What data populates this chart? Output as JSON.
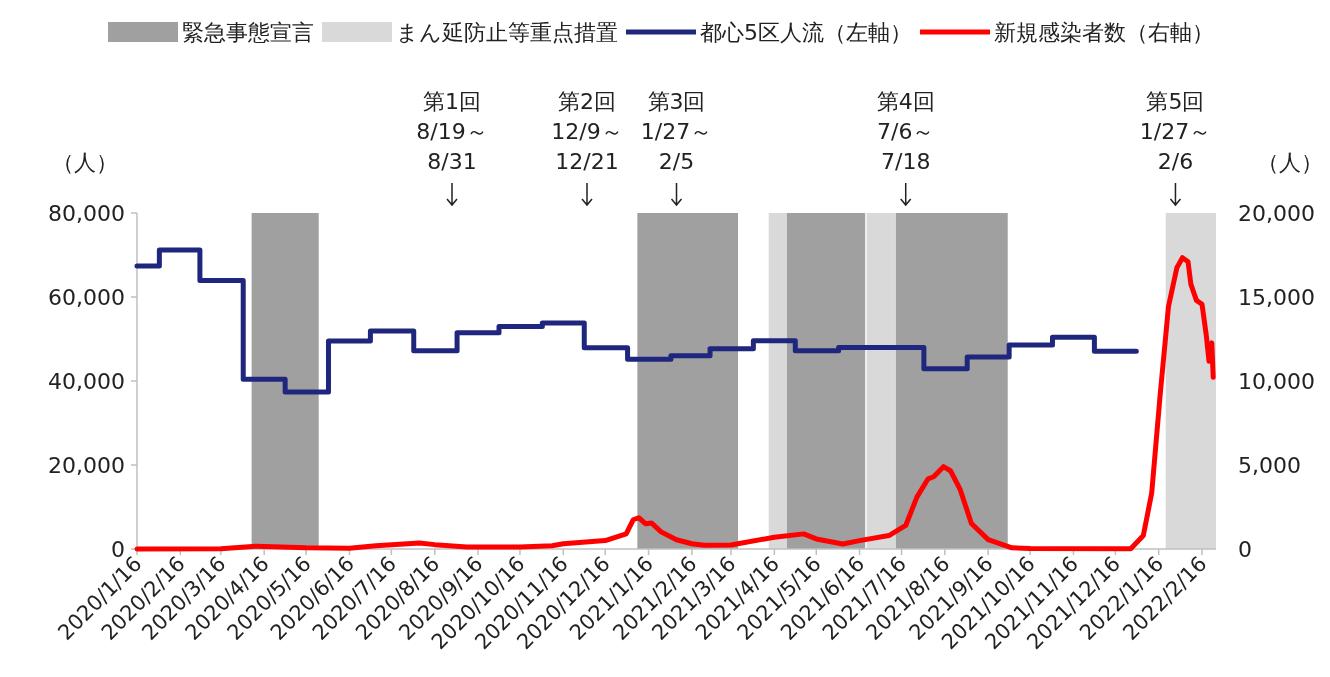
{
  "chart_data": {
    "type": "line",
    "ylabel": "（人）",
    "y2label": "（人）",
    "xlim": [
      "2020-01-16",
      "2022-02-26"
    ],
    "xticks": [
      {
        "value": "2020-01-16",
        "label": "2020/1/16"
      },
      {
        "value": "2020-02-16",
        "label": "2020/2/16"
      },
      {
        "value": "2020-03-16",
        "label": "2020/3/16"
      },
      {
        "value": "2020-04-16",
        "label": "2020/4/16"
      },
      {
        "value": "2020-05-16",
        "label": "2020/5/16"
      },
      {
        "value": "2020-06-16",
        "label": "2020/6/16"
      },
      {
        "value": "2020-07-16",
        "label": "2020/7/16"
      },
      {
        "value": "2020-08-16",
        "label": "2020/8/16"
      },
      {
        "value": "2020-09-16",
        "label": "2020/9/16"
      },
      {
        "value": "2020-10-16",
        "label": "2020/10/16"
      },
      {
        "value": "2020-11-16",
        "label": "2020/11/16"
      },
      {
        "value": "2020-12-16",
        "label": "2020/12/16"
      },
      {
        "value": "2021-01-16",
        "label": "2021/1/16"
      },
      {
        "value": "2021-02-16",
        "label": "2021/2/16"
      },
      {
        "value": "2021-03-16",
        "label": "2021/3/16"
      },
      {
        "value": "2021-04-16",
        "label": "2021/4/16"
      },
      {
        "value": "2021-05-16",
        "label": "2021/5/16"
      },
      {
        "value": "2021-06-16",
        "label": "2021/6/16"
      },
      {
        "value": "2021-07-16",
        "label": "2021/7/16"
      },
      {
        "value": "2021-08-16",
        "label": "2021/8/16"
      },
      {
        "value": "2021-09-16",
        "label": "2021/9/16"
      },
      {
        "value": "2021-10-16",
        "label": "2021/10/16"
      },
      {
        "value": "2021-11-16",
        "label": "2021/11/16"
      },
      {
        "value": "2021-12-16",
        "label": "2021/12/16"
      },
      {
        "value": "2022-01-16",
        "label": "2022/1/16"
      },
      {
        "value": "2022-02-16",
        "label": "2022/2/16"
      }
    ],
    "ylim": [
      0,
      80000
    ],
    "yticks": [
      {
        "value": 0,
        "label": "0"
      },
      {
        "value": 20000,
        "label": "20,000"
      },
      {
        "value": 40000,
        "label": "40,000"
      },
      {
        "value": 60000,
        "label": "60,000"
      },
      {
        "value": 80000,
        "label": "80,000"
      }
    ],
    "y2lim": [
      0,
      20000
    ],
    "y2ticks": [
      {
        "value": 0,
        "label": "0"
      },
      {
        "value": 5000,
        "label": "5,000"
      },
      {
        "value": 10000,
        "label": "10,000"
      },
      {
        "value": 15000,
        "label": "15,000"
      },
      {
        "value": 20000,
        "label": "20,000"
      }
    ],
    "legend": "top",
    "grid": false,
    "bands": [
      {
        "axis": "x",
        "from": "2020-04-07",
        "to": "2020-05-25",
        "label": "緊急事態宣言",
        "color": "#a0a0a0"
      },
      {
        "axis": "x",
        "from": "2021-01-08",
        "to": "2021-03-21",
        "color": "#a0a0a0"
      },
      {
        "axis": "x",
        "from": "2021-04-12",
        "to": "2021-04-25",
        "label": "まん延防止等重点措置",
        "color": "#d9d9d9"
      },
      {
        "axis": "x",
        "from": "2021-04-25",
        "to": "2021-06-20",
        "color": "#a0a0a0"
      },
      {
        "axis": "x",
        "from": "2021-06-21",
        "to": "2021-07-12",
        "color": "#d9d9d9"
      },
      {
        "axis": "x",
        "from": "2021-07-12",
        "to": "2021-09-30",
        "color": "#a0a0a0"
      },
      {
        "axis": "x",
        "from": "2022-01-21",
        "to": "2022-02-26",
        "color": "#d9d9d9"
      }
    ],
    "annotations": [
      "第1回\n8/19～\n8/31",
      "第2回\n12/9～\n12/21",
      {
        "text": "第3回\n1/27～\n2/5",
        "x": "2021-02-05",
        "y": 80000
      },
      {
        "text": "第4回\n7/6～\n7/18",
        "x": "2021-07-19",
        "y": 80000
      },
      {
        "text": "第5回\n1/27～\n2/6",
        "x": "2022-01-28",
        "y": 80000
      }
    ],
    "series": [
      {
        "name": "都心5区人流（左軸）",
        "type": "step",
        "color": "#1f267d",
        "axis": "y",
        "x": [
          "2020-01-16",
          "2020-02-01",
          "2020-03-01",
          "2020-04-01",
          "2020-05-01",
          "2020-06-01",
          "2020-07-01",
          "2020-08-01",
          "2020-09-01",
          "2020-10-01",
          "2020-11-01",
          "2020-12-01",
          "2021-01-01",
          "2021-02-01",
          "2021-03-01",
          "2021-04-01",
          "2021-05-01",
          "2021-06-01",
          "2021-07-01",
          "2021-08-01",
          "2021-09-01",
          "2021-10-01",
          "2021-11-01",
          "2021-12-01",
          "2021-12-31"
        ],
        "values": [
          67400,
          71200,
          63900,
          40400,
          37400,
          49500,
          51900,
          47200,
          51500,
          53000,
          53800,
          47900,
          45200,
          46000,
          47700,
          49600,
          47200,
          48000,
          48000,
          42900,
          45700,
          48600,
          50400,
          47100,
          47100
        ]
      },
      {
        "name": "新規感染者数（右軸）",
        "type": "line",
        "color": "#ff0000",
        "axis": "y2",
        "x": [
          "2020-01-16",
          "2020-03-16",
          "2020-04-10",
          "2020-05-16",
          "2020-06-16",
          "2020-07-05",
          "2020-08-05",
          "2020-08-16",
          "2020-09-08",
          "2020-10-16",
          "2020-11-08",
          "2020-11-16",
          "2020-12-16",
          "2020-12-31",
          "2021-01-05",
          "2021-01-09",
          "2021-01-14",
          "2021-01-18",
          "2021-01-25",
          "2021-02-05",
          "2021-02-16",
          "2021-02-25",
          "2021-03-16",
          "2021-04-16",
          "2021-05-07",
          "2021-05-16",
          "2021-06-04",
          "2021-06-16",
          "2021-07-07",
          "2021-07-19",
          "2021-07-27",
          "2021-08-04",
          "2021-08-08",
          "2021-08-15",
          "2021-08-20",
          "2021-08-27",
          "2021-09-04",
          "2021-09-16",
          "2021-10-03",
          "2021-10-16",
          "2021-12-27",
          "2022-01-05",
          "2022-01-11",
          "2022-01-17",
          "2022-01-23",
          "2022-01-29",
          "2022-02-02",
          "2022-02-06",
          "2022-02-08",
          "2022-02-12",
          "2022-02-16",
          "2022-02-19",
          "2022-02-21",
          "2022-02-23",
          "2022-02-24"
        ],
        "values": [
          0,
          20,
          170,
          70,
          50,
          190,
          360,
          260,
          120,
          120,
          190,
          310,
          500,
          900,
          1740,
          1860,
          1500,
          1550,
          1020,
          550,
          310,
          220,
          240,
          700,
          900,
          600,
          300,
          500,
          800,
          1400,
          3090,
          4180,
          4300,
          4900,
          4660,
          3530,
          1520,
          560,
          70,
          30,
          20,
          800,
          3330,
          9130,
          14440,
          16740,
          17340,
          17100,
          15770,
          14800,
          14570,
          12750,
          11180,
          12270,
          10220
        ]
      }
    ]
  }
}
